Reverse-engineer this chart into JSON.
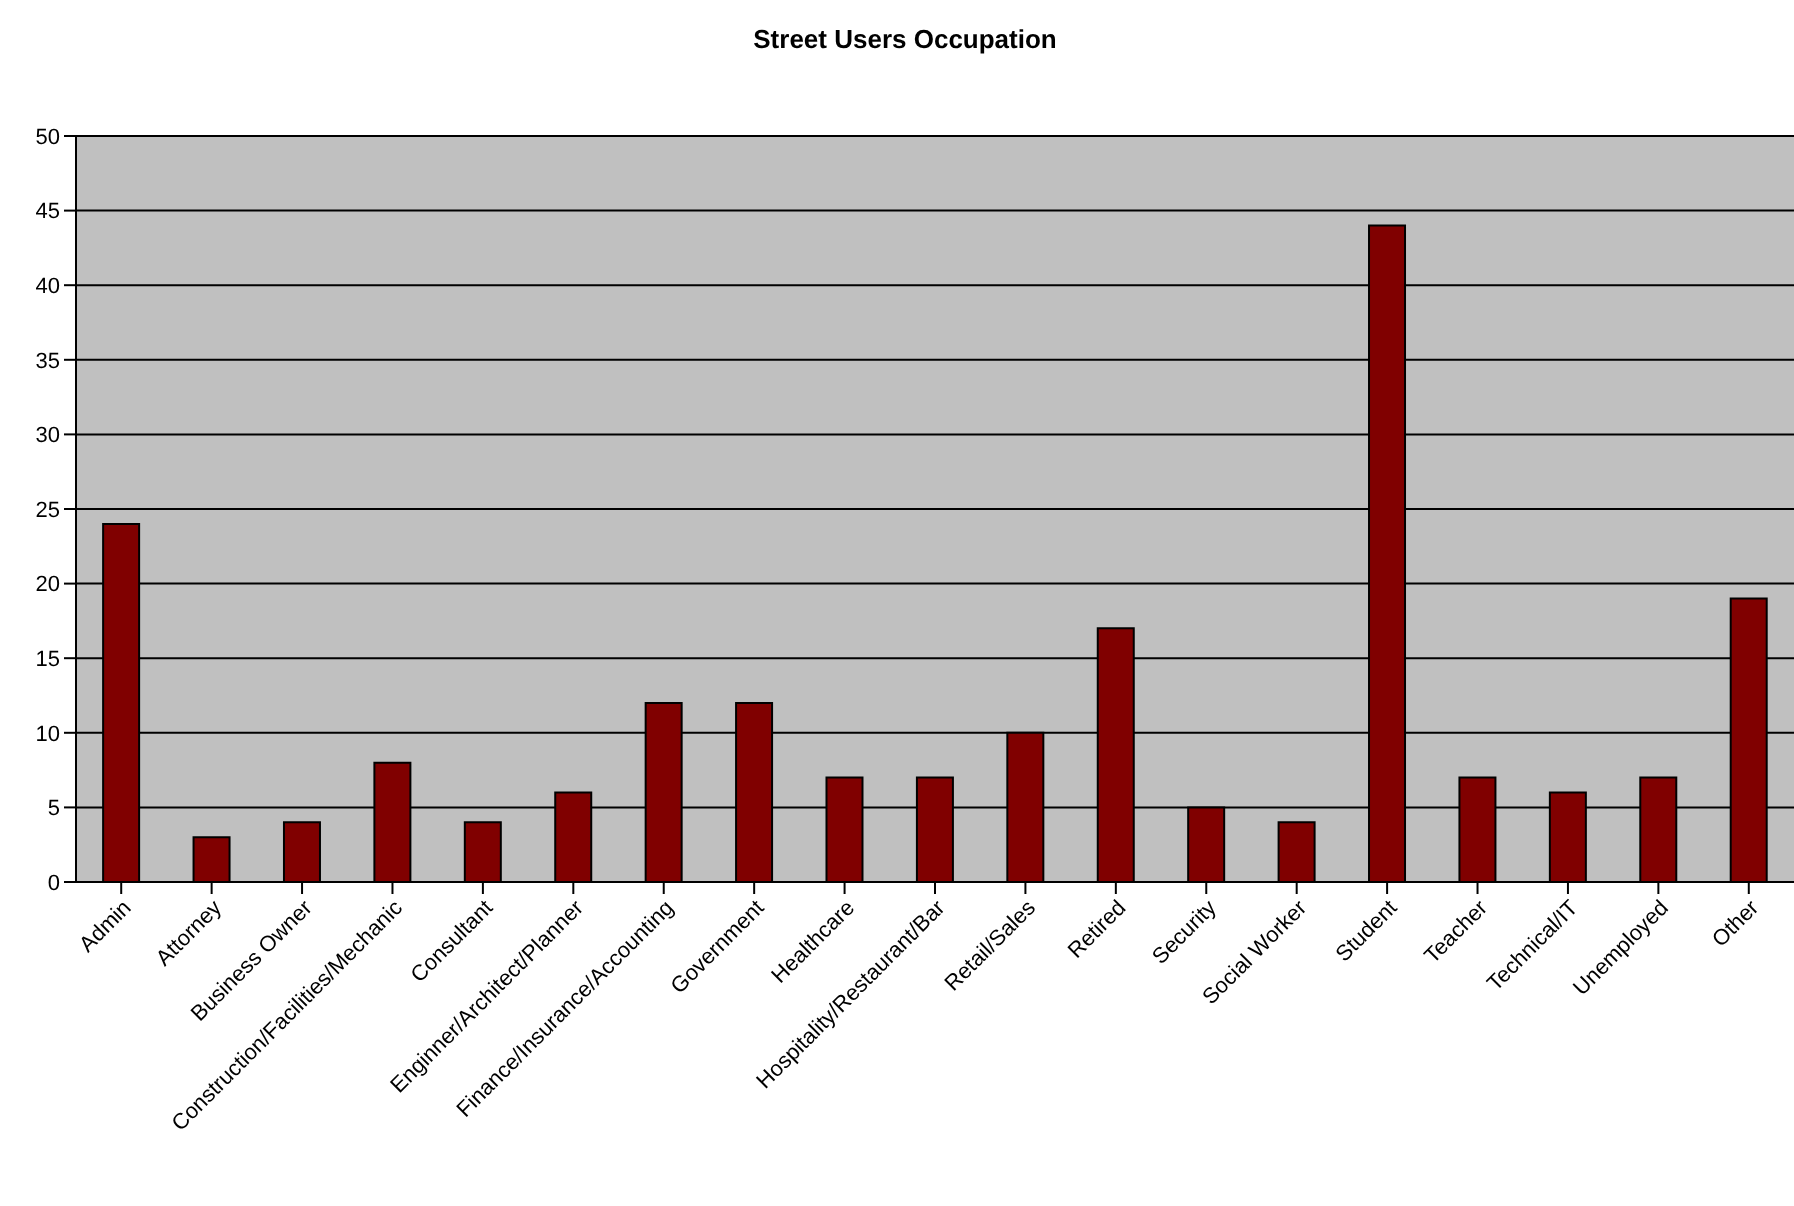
{
  "chart_data": {
    "type": "bar",
    "title": "Street Users Occupation",
    "categories": [
      "Admin",
      "Attorney",
      "Business Owner",
      "Construction/Facilities/Mechanic",
      "Consultant",
      "Enginner/Architect/Planner",
      "Finance/Insurance/Accounting",
      "Government",
      "Healthcare",
      "Hospitality/Restaurant/Bar",
      "Retail/Sales",
      "Retired",
      "Security",
      "Social Worker",
      "Student",
      "Teacher",
      "Technical/IT",
      "Unemployed",
      "Other"
    ],
    "values": [
      24,
      3,
      4,
      8,
      4,
      6,
      12,
      12,
      7,
      7,
      10,
      17,
      5,
      4,
      44,
      7,
      6,
      7,
      19
    ],
    "color": "#800000",
    "ylim": [
      0,
      50
    ],
    "yticks": [
      0,
      5,
      10,
      15,
      20,
      25,
      30,
      35,
      40,
      45,
      50
    ],
    "grid": "y"
  }
}
